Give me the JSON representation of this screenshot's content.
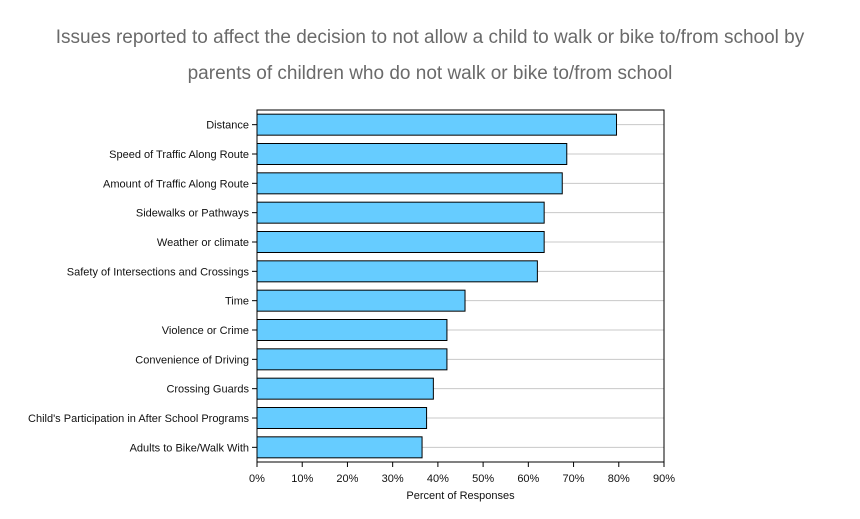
{
  "chart_data": {
    "type": "bar",
    "orientation": "horizontal",
    "title_lines": [
      "Issues reported to affect the decision to not allow a child to walk or bike to/from school by",
      "parents of children who do not walk or bike to/from school"
    ],
    "categories": [
      "Distance",
      "Speed of Traffic Along Route",
      "Amount of Traffic Along Route",
      "Sidewalks or Pathways",
      "Weather or climate",
      "Safety of Intersections and Crossings",
      "Time",
      "Violence or Crime",
      "Convenience of Driving",
      "Crossing Guards",
      "Child's Participation in After School Programs",
      "Adults to Bike/Walk With"
    ],
    "values": [
      79.5,
      68.5,
      67.5,
      63.5,
      63.5,
      62,
      46,
      42,
      42,
      39,
      37.5,
      36.5
    ],
    "xlabel": "Percent of Responses",
    "ylabel": "",
    "xlim": [
      0,
      90
    ],
    "xticks": [
      "0%",
      "10%",
      "20%",
      "30%",
      "40%",
      "50%",
      "60%",
      "70%",
      "80%",
      "90%"
    ],
    "grid": "horizontal",
    "legend": "none",
    "colors": {
      "bar_fill": "#66ccff",
      "bar_stroke": "#000000",
      "grid": "#c8c8c8",
      "title": "#6a6a6a"
    }
  }
}
